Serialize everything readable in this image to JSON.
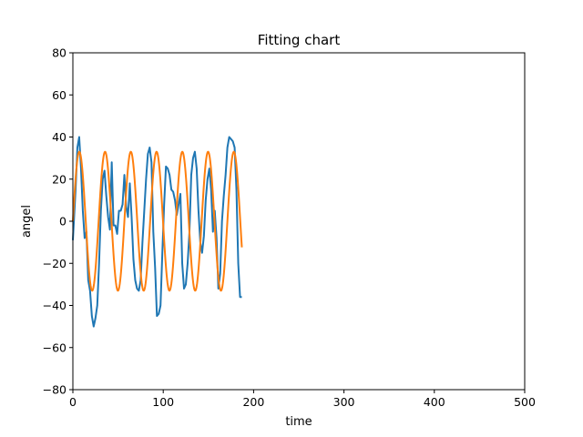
{
  "chart_data": {
    "type": "line",
    "title": "Fitting chart",
    "xlabel": "time",
    "ylabel": "angel",
    "xlim": [
      0,
      500
    ],
    "ylim": [
      -80,
      80
    ],
    "x_ticks": [
      0,
      100,
      200,
      300,
      400,
      500
    ],
    "y_ticks": [
      -80,
      -60,
      -40,
      -20,
      0,
      20,
      40,
      60,
      80
    ],
    "grid": false,
    "legend": "none",
    "series": [
      {
        "color": "#1f77b4",
        "x": [
          0,
          3,
          5,
          7,
          9,
          11,
          13,
          15,
          17,
          19,
          21,
          23,
          25,
          27,
          29,
          31,
          33,
          35,
          37,
          39,
          41,
          43,
          45,
          47,
          49,
          51,
          53,
          55,
          57,
          59,
          61,
          63,
          65,
          67,
          69,
          71,
          73,
          75,
          77,
          79,
          81,
          83,
          85,
          87,
          89,
          91,
          93,
          95,
          97,
          99,
          101,
          103,
          105,
          107,
          109,
          111,
          113,
          115,
          117,
          119,
          121,
          123,
          125,
          127,
          129,
          131,
          133,
          135,
          137,
          139,
          141,
          143,
          145,
          147,
          149,
          151,
          153,
          155,
          157,
          159,
          161,
          163,
          165,
          167,
          169,
          171,
          173,
          175,
          177,
          179,
          181,
          183,
          185,
          187
        ],
        "y": [
          -9,
          15,
          35,
          40,
          25,
          5,
          -8,
          -5,
          -28,
          -33,
          -45,
          -50,
          -46,
          -40,
          -20,
          5,
          20,
          24,
          12,
          2,
          -4,
          28,
          -2,
          -2,
          -6,
          5,
          5,
          8,
          22,
          7,
          2,
          18,
          2,
          -18,
          -28,
          -32,
          -33,
          -28,
          -10,
          5,
          20,
          32,
          35,
          28,
          -5,
          -22,
          -45,
          -44,
          -40,
          -15,
          8,
          26,
          25,
          22,
          15,
          14,
          10,
          3,
          8,
          13,
          -20,
          -32,
          -30,
          -20,
          -5,
          22,
          30,
          33,
          25,
          5,
          -10,
          -15,
          -7,
          10,
          20,
          25,
          15,
          -5,
          5,
          -8,
          -32,
          -25,
          0,
          12,
          22,
          35,
          40,
          39,
          38,
          35,
          15,
          -20,
          -36,
          -36
        ]
      },
      {
        "color": "#ff7f0e",
        "amplitude": 33,
        "period": 28.5,
        "x_range": [
          0,
          187
        ]
      }
    ]
  }
}
